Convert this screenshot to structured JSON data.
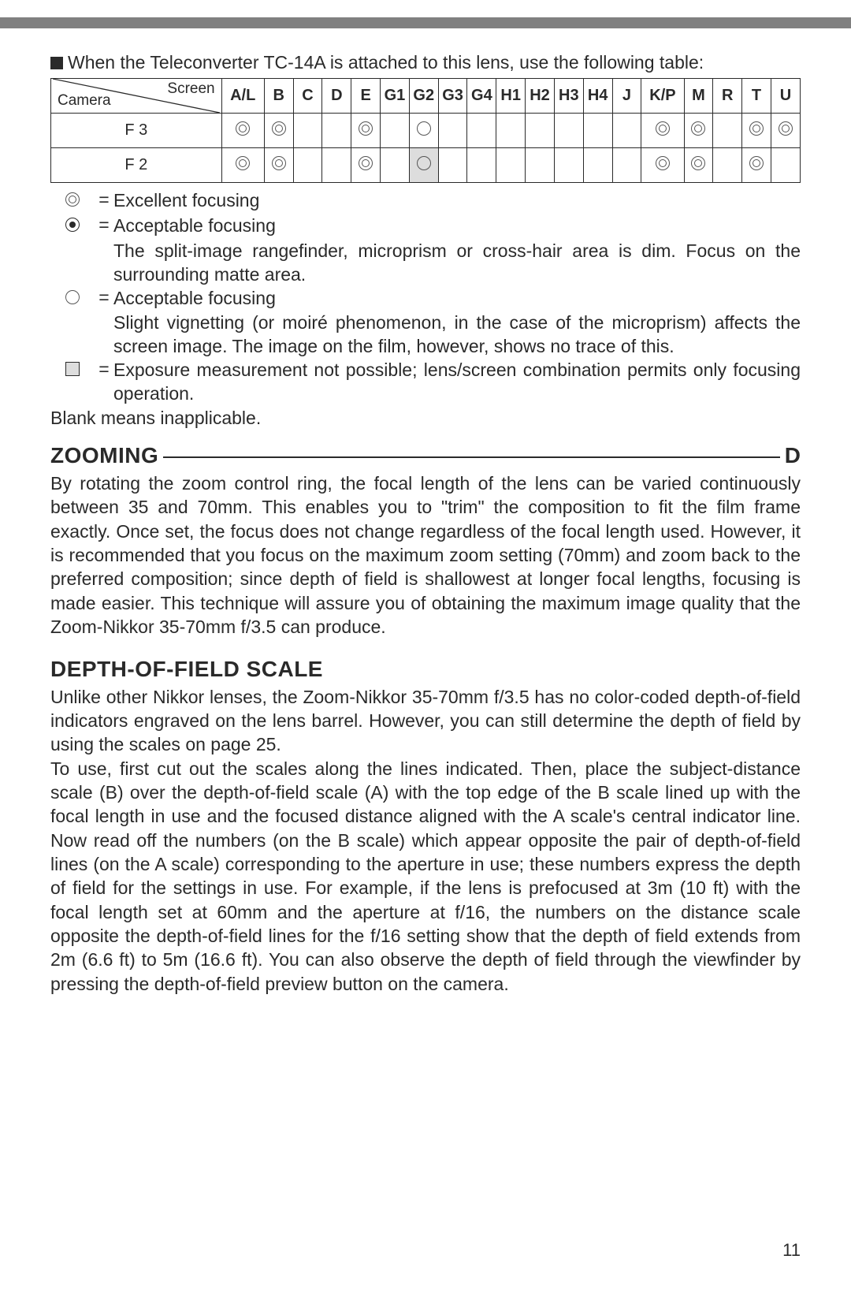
{
  "intro": "When the Teleconverter TC-14A is attached to this lens, use the following table:",
  "table": {
    "corner": {
      "camera": "Camera",
      "screen": "Screen"
    },
    "headers": [
      "A/L",
      "B",
      "C",
      "D",
      "E",
      "G1",
      "G2",
      "G3",
      "G4",
      "H1",
      "H2",
      "H3",
      "H4",
      "J",
      "K/P",
      "M",
      "R",
      "T",
      "U"
    ],
    "rows": [
      {
        "label": "F 3",
        "cells": [
          "dbl",
          "dbl",
          "",
          "",
          "dbl",
          "",
          "circ",
          "",
          "",
          "",
          "",
          "",
          "",
          "",
          "dbl",
          "dbl",
          "",
          "dbl",
          "dbl"
        ],
        "shaded": []
      },
      {
        "label": "F 2",
        "cells": [
          "dbl",
          "dbl",
          "",
          "",
          "dbl",
          "",
          "circ",
          "",
          "",
          "",
          "",
          "",
          "",
          "",
          "dbl",
          "dbl",
          "",
          "dbl",
          ""
        ],
        "shaded": [
          6
        ]
      }
    ]
  },
  "legend": {
    "excellent": "Excellent focusing",
    "acceptable_dot": "Acceptable focusing",
    "acceptable_dot_sub": "The split-image rangefinder, microprism or cross-hair area is dim. Focus on the surrounding matte area.",
    "acceptable_circ": "Acceptable focusing",
    "acceptable_circ_sub": "Slight vignetting (or moiré phenomenon, in the case of the microprism) affects the screen image. The image on the film, however, shows no trace of this.",
    "square": "Exposure measurement not possible; lens/screen combination permits only focusing operation.",
    "blank": "Blank means inapplicable."
  },
  "zooming": {
    "title": "ZOOMING",
    "tail": "D",
    "body": "By rotating the zoom control ring, the focal length of the lens can be varied continuously between 35 and 70mm. This enables you to \"trim\" the composition to fit the film frame exactly. Once set, the focus does not change regardless of the focal length used. However, it is recommended that you focus on the maximum zoom setting (70mm) and zoom back to the preferred composition; since depth of field is shallowest at longer focal lengths, focusing is made easier. This technique will assure you of obtaining the maximum image quality that the Zoom-Nikkor 35-70mm f/3.5 can produce."
  },
  "dof": {
    "title": "DEPTH-OF-FIELD SCALE",
    "p1": "Unlike other Nikkor lenses, the Zoom-Nikkor 35-70mm f/3.5 has no color-coded depth-of-field indicators engraved on the lens barrel. However, you can still determine the depth of field by using the scales on page 25.",
    "p2": "To use, first cut out the scales along the lines indicated. Then, place the subject-distance scale (B) over the depth-of-field scale (A) with the top edge of the B scale lined up with the focal length in use and the focused distance aligned with the A scale's central indicator line. Now read off the numbers (on the B scale) which appear opposite the pair of depth-of-field lines (on the A scale) corresponding to the aperture in use; these numbers express the depth of field for the settings in use. For example, if the lens is prefocused at 3m (10 ft) with the focal length set at 60mm and the aperture at f/16, the numbers on the distance scale opposite the depth-of-field lines for the f/16 setting show that the depth of field extends from 2m (6.6 ft) to 5m (16.6 ft). You can also observe the depth of field through the viewfinder by pressing the depth-of-field preview button on the camera."
  },
  "page_number": "11"
}
